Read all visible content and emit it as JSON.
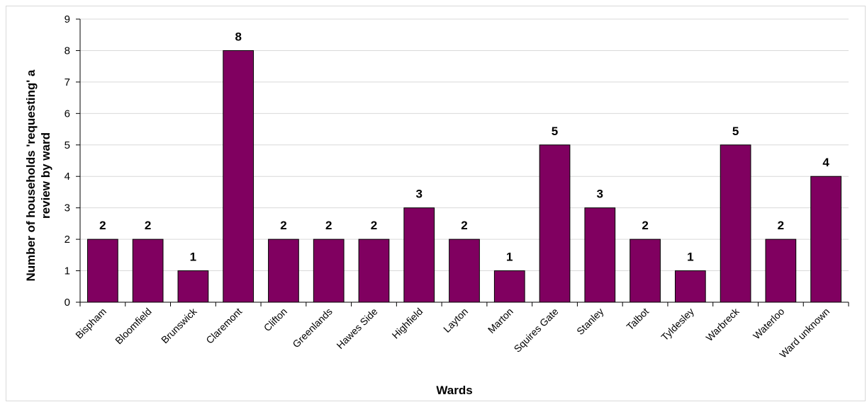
{
  "chart_data": {
    "type": "bar",
    "title": "",
    "xlabel": "Wards",
    "ylabel_lines": [
      "Number of households 'requesting' a",
      "review by ward"
    ],
    "categories": [
      "Bispham",
      "Bloomfield",
      "Brunswick",
      "Claremont",
      "Clifton",
      "Greenlands",
      "Hawes Side",
      "Highfield",
      "Layton",
      "Marton",
      "Squires Gate",
      "Stanley",
      "Talbot",
      "Tyldesley",
      "Warbreck",
      "Waterloo",
      "Ward unknown"
    ],
    "values": [
      2,
      2,
      1,
      8,
      2,
      2,
      2,
      3,
      2,
      1,
      5,
      3,
      2,
      1,
      5,
      2,
      4
    ],
    "ylim": [
      0,
      9
    ],
    "yticks": [
      0,
      1,
      2,
      3,
      4,
      5,
      6,
      7,
      8,
      9
    ],
    "grid": true,
    "data_labels": true,
    "bar_color": "#800060",
    "grid_color": "#d9d9d9"
  }
}
